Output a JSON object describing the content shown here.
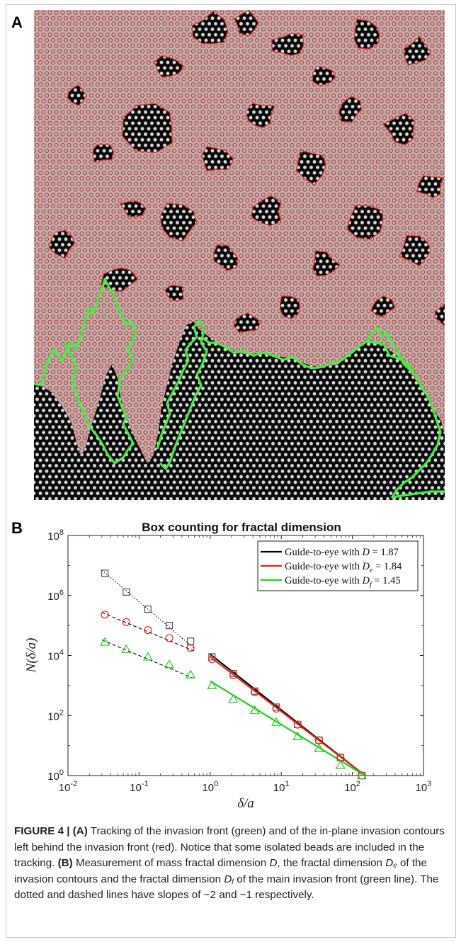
{
  "panel_a": {
    "label": "A"
  },
  "panel_b": {
    "label": "B"
  },
  "chart_data": {
    "type": "scatter",
    "title": "Box counting for fractal dimension",
    "xlabel": "δ/a",
    "ylabel": "N(δ/a)",
    "xscale": "log",
    "yscale": "log",
    "xlim": [
      0.01,
      1000
    ],
    "ylim": [
      1,
      100000000
    ],
    "x_ticks": [
      "10^-2",
      "10^-1",
      "10^0",
      "10^1",
      "10^2",
      "10^3"
    ],
    "y_ticks": [
      "10^0",
      "10^2",
      "10^4",
      "10^6",
      "10^8"
    ],
    "legend_position": "top-right",
    "legend": [
      {
        "prefix": "Guide-to-eye with ",
        "sym": "D",
        "sub": "",
        "value": "1.87",
        "color": "#000000"
      },
      {
        "prefix": "Guide-to-eye with ",
        "sym": "D",
        "sub": "e",
        "value": "1.84",
        "color": "#e8241d"
      },
      {
        "prefix": "Guide-to-eye with ",
        "sym": "D",
        "sub": "f",
        "value": "1.45",
        "color": "#22d022"
      }
    ],
    "series": [
      {
        "marker": "square",
        "color": "#555555",
        "x": [
          0.033,
          0.066,
          0.133,
          0.266,
          0.53,
          1.06,
          2.12,
          4.25,
          8.5,
          17,
          34,
          68,
          136
        ],
        "y": [
          5500000,
          1300000,
          350000,
          100000,
          30000,
          9000,
          2500,
          650,
          190,
          50,
          15,
          4,
          1
        ]
      },
      {
        "marker": "circle",
        "color": "#e8241d",
        "x": [
          0.033,
          0.066,
          0.133,
          0.266,
          0.53,
          1.06,
          2.12,
          4.25,
          8.5,
          17,
          34,
          68,
          136
        ],
        "y": [
          230000,
          130000,
          70000,
          38000,
          18000,
          7500,
          2200,
          600,
          170,
          50,
          15,
          4,
          1
        ]
      },
      {
        "marker": "triangle",
        "color": "#22d022",
        "x": [
          0.033,
          0.066,
          0.133,
          0.266,
          0.53,
          1.06,
          2.12,
          4.25,
          8.5,
          17,
          34,
          68,
          136
        ],
        "y": [
          28000,
          16000,
          9000,
          5000,
          2300,
          1000,
          350,
          150,
          60,
          20,
          8,
          2.2,
          1
        ]
      }
    ],
    "guide_lines": [
      {
        "style": "dotted",
        "color": "#000000",
        "x": [
          0.03,
          0.6
        ],
        "y": [
          7000000,
          17000
        ]
      },
      {
        "style": "dashed",
        "color": "#000000",
        "x": [
          0.03,
          0.6
        ],
        "y": [
          270000,
          14000
        ]
      },
      {
        "style": "dashed",
        "color": "#000000",
        "x": [
          0.03,
          0.6
        ],
        "y": [
          33000,
          1700
        ]
      },
      {
        "style": "solid",
        "color": "#000000",
        "x": [
          1.0,
          150
        ],
        "y": [
          11000,
          1
        ]
      },
      {
        "style": "solid",
        "color": "#e8241d",
        "x": [
          1.0,
          150
        ],
        "y": [
          9000,
          1
        ]
      },
      {
        "style": "solid",
        "color": "#22d022",
        "x": [
          1.0,
          150
        ],
        "y": [
          1400,
          1
        ]
      }
    ]
  },
  "caption": {
    "fig_label": "FIGURE 4 |",
    "a_label": "(A)",
    "a_text": " Tracking of the invasion front (green) and of the in-plane invasion contours left behind the invasion front (red). Notice that some isolated beads are included in the tracking. ",
    "b_label": "(B)",
    "b_text1": " Measurement of mass fractal dimension ",
    "d": "D",
    "b_text2": ", the fractal dimension ",
    "de_sub": "e",
    "b_text3": " of the invasion contours and the fractal dimension ",
    "df_sub": "f",
    "b_text4": " of the main invasion front (green line). The dotted and dashed lines have slopes of −2 and −1 respectively."
  },
  "colors": {
    "front": "#3ff03f",
    "contour": "#e0302a",
    "bead": "#d8d8d8",
    "invaded": "#b4b4b4",
    "background": "#0c0c0c"
  }
}
